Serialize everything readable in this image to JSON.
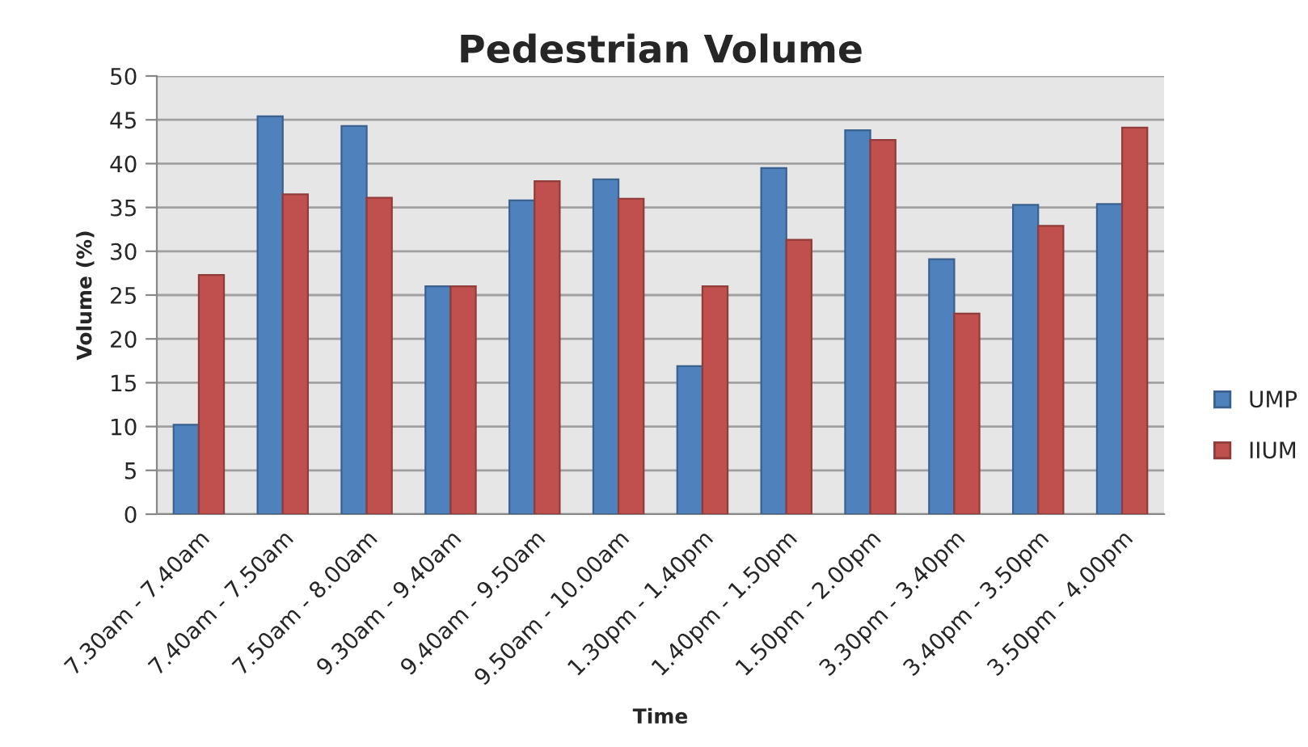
{
  "chart_data": {
    "type": "bar",
    "title": "Pedestrian Volume",
    "xlabel": "Time",
    "ylabel": "Volume (%)",
    "categories": [
      "7.30am - 7.40am",
      "7.40am - 7.50am",
      "7.50am - 8.00am",
      "9.30am - 9.40am",
      "9.40am - 9.50am",
      "9.50am - 10.00am",
      "1.30pm - 1.40pm",
      "1.40pm - 1.50pm",
      "1.50pm - 2.00pm",
      "3.30pm - 3.40pm",
      "3.40pm - 3.50pm",
      "3.50pm - 4.00pm"
    ],
    "series": [
      {
        "name": "UMP",
        "color": "#4f81bd",
        "values": [
          10.2,
          45.4,
          44.3,
          26,
          35.8,
          38.2,
          16.9,
          39.5,
          43.8,
          29.1,
          35.3,
          35.4
        ]
      },
      {
        "name": "IIUM",
        "color": "#c0504d",
        "values": [
          27.3,
          36.5,
          36.1,
          26,
          38,
          36,
          26,
          31.3,
          42.7,
          22.9,
          32.9,
          44.1
        ]
      }
    ],
    "ylim": [
      0,
      50
    ],
    "yticks": [
      0,
      5,
      10,
      15,
      20,
      25,
      30,
      35,
      40,
      45,
      50
    ],
    "grid": "y",
    "legend": "right"
  }
}
